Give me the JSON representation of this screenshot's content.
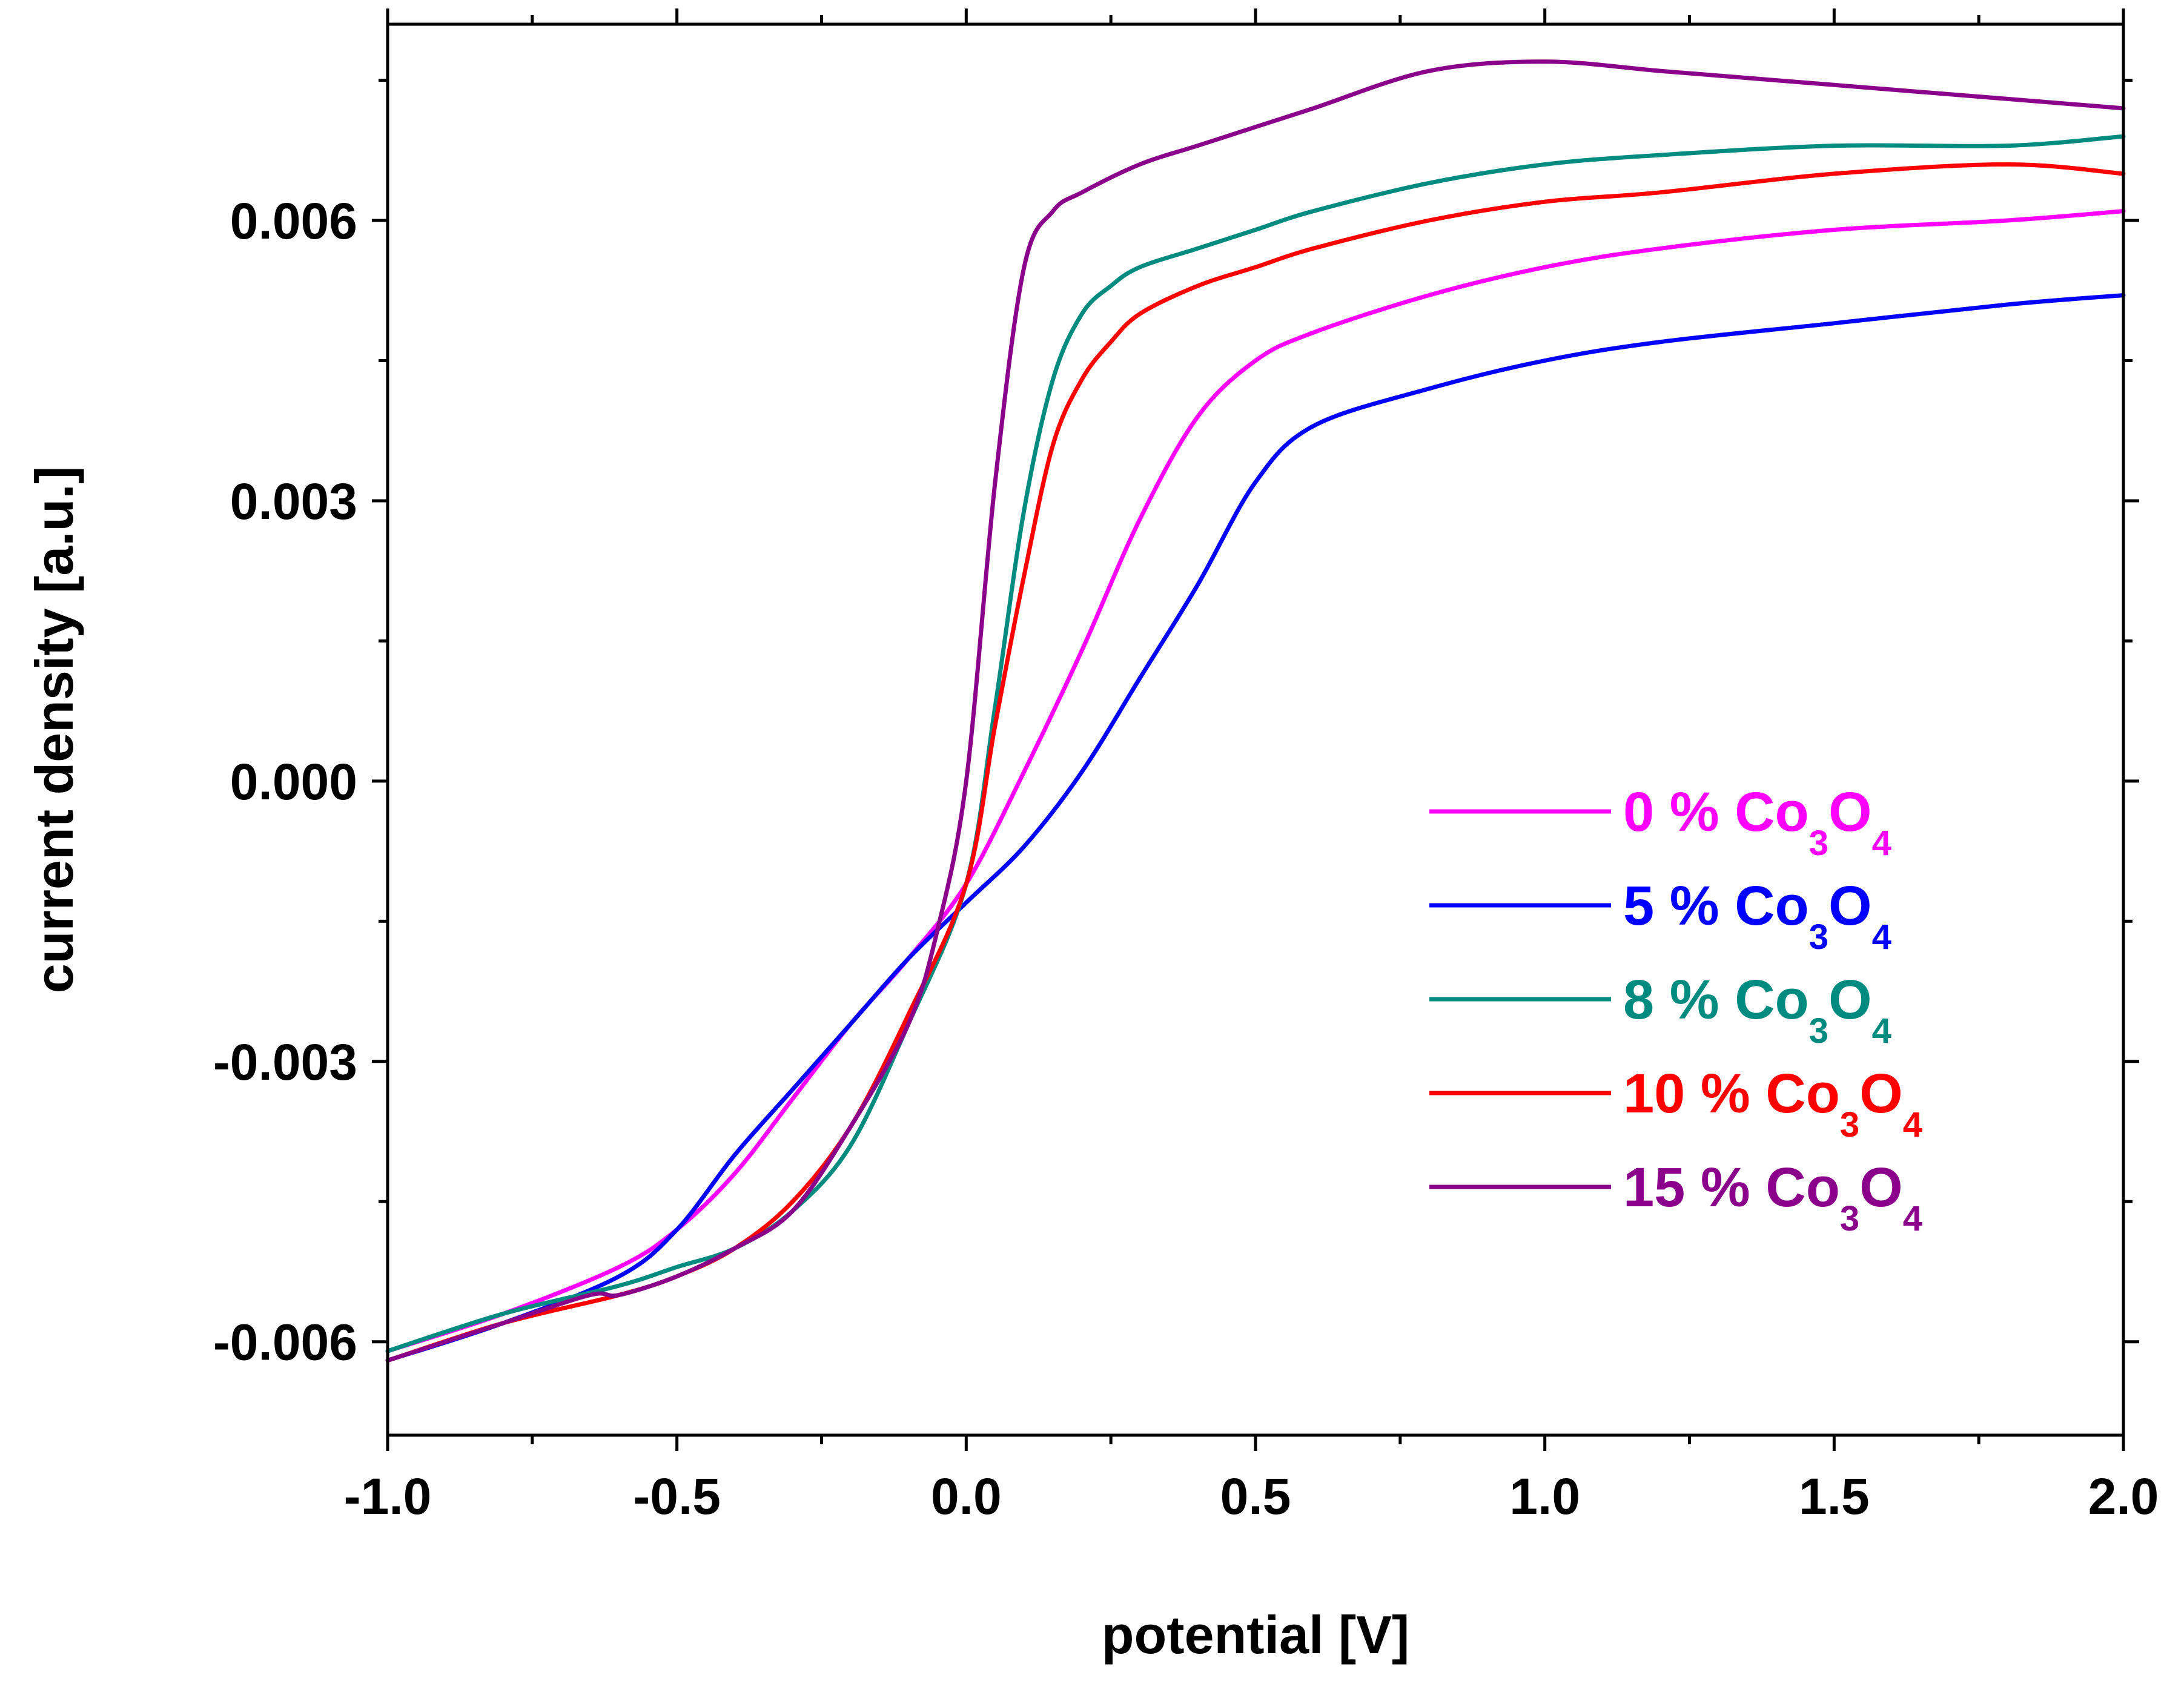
{
  "chart_data": {
    "type": "line",
    "title": "",
    "xlabel": "potential [V]",
    "ylabel": "current density [a.u.]",
    "xlim": [
      -1.0,
      2.0
    ],
    "ylim": [
      -0.007,
      0.0081
    ],
    "xticks": [
      -1.0,
      -0.5,
      0.0,
      0.5,
      1.0,
      1.5,
      2.0
    ],
    "xtick_labels": [
      "-1.0",
      "-0.5",
      "0.0",
      "0.5",
      "1.0",
      "1.5",
      "2.0"
    ],
    "yticks": [
      -0.006,
      -0.003,
      0.0,
      0.003,
      0.006
    ],
    "ytick_labels": [
      "-0.006",
      "-0.003",
      "0.000",
      "0.003",
      "0.006"
    ],
    "grid": false,
    "legend_position": "center-right",
    "series": [
      {
        "name": "0 % Co3O4",
        "legend": {
          "pct": "0 %",
          "co": "Co",
          "s1": "3",
          "o": "O",
          "s2": "4"
        },
        "color": "#ff00ff",
        "x": [
          -1.0,
          -0.8,
          -0.6,
          -0.5,
          -0.4,
          -0.3,
          -0.2,
          -0.1,
          0.0,
          0.1,
          0.2,
          0.3,
          0.4,
          0.5,
          0.6,
          0.8,
          1.0,
          1.2,
          1.5,
          1.8,
          2.0
        ],
        "y": [
          -0.0061,
          -0.0057,
          -0.0052,
          -0.0048,
          -0.0042,
          -0.0034,
          -0.0026,
          -0.0019,
          -0.0011,
          0.0001,
          0.0014,
          0.0028,
          0.0039,
          0.0045,
          0.0048,
          0.0052,
          0.0055,
          0.0057,
          0.0059,
          0.006,
          0.0061
        ]
      },
      {
        "name": "5 % Co3O4",
        "legend": {
          "pct": "5 %",
          "co": "Co",
          "s1": "3",
          "o": "O",
          "s2": "4"
        },
        "color": "#0000ff",
        "x": [
          -1.0,
          -0.8,
          -0.6,
          -0.5,
          -0.4,
          -0.3,
          -0.2,
          -0.1,
          0.0,
          0.1,
          0.2,
          0.3,
          0.4,
          0.5,
          0.6,
          0.8,
          1.0,
          1.2,
          1.5,
          1.8,
          2.0
        ],
        "y": [
          -0.0062,
          -0.0058,
          -0.0053,
          -0.0048,
          -0.004,
          -0.0033,
          -0.0026,
          -0.0019,
          -0.0013,
          -0.0007,
          0.0001,
          0.0011,
          0.0021,
          0.0032,
          0.0038,
          0.0042,
          0.0045,
          0.0047,
          0.0049,
          0.0051,
          0.0052
        ]
      },
      {
        "name": "8 % Co3O4",
        "legend": {
          "pct": "8 %",
          "co": "Co",
          "s1": "3",
          "o": "O",
          "s2": "4"
        },
        "color": "#008b80",
        "x": [
          -1.0,
          -0.8,
          -0.6,
          -0.5,
          -0.4,
          -0.3,
          -0.2,
          -0.1,
          0.0,
          0.05,
          0.1,
          0.15,
          0.2,
          0.25,
          0.3,
          0.4,
          0.5,
          0.6,
          0.8,
          1.0,
          1.2,
          1.5,
          1.8,
          2.0
        ],
        "y": [
          -0.0061,
          -0.0057,
          -0.0054,
          -0.0052,
          -0.005,
          -0.0046,
          -0.0039,
          -0.0026,
          -0.0011,
          0.0008,
          0.0029,
          0.0043,
          0.005,
          0.0053,
          0.0055,
          0.0057,
          0.0059,
          0.0061,
          0.0064,
          0.0066,
          0.0067,
          0.0068,
          0.0068,
          0.0069
        ]
      },
      {
        "name": "10 % Co3O4",
        "legend": {
          "pct": "10 %",
          "co": "Co",
          "s1": "3",
          "o": "O",
          "s2": "4"
        },
        "color": "#ff0000",
        "x": [
          -1.0,
          -0.8,
          -0.6,
          -0.5,
          -0.4,
          -0.3,
          -0.2,
          -0.1,
          0.0,
          0.05,
          0.1,
          0.15,
          0.2,
          0.25,
          0.3,
          0.4,
          0.5,
          0.6,
          0.8,
          1.0,
          1.2,
          1.5,
          1.8,
          2.0
        ],
        "y": [
          -0.0062,
          -0.0058,
          -0.0055,
          -0.0053,
          -0.005,
          -0.0045,
          -0.0037,
          -0.0025,
          -0.0011,
          0.0006,
          0.0022,
          0.0036,
          0.0043,
          0.0047,
          0.005,
          0.0053,
          0.0055,
          0.0057,
          0.006,
          0.0062,
          0.0063,
          0.0065,
          0.0066,
          0.0065
        ]
      },
      {
        "name": "15 % Co3O4",
        "legend": {
          "pct": "15 %",
          "co": "Co",
          "s1": "3",
          "o": "O",
          "s2": "4"
        },
        "color": "#8b008b",
        "x": [
          -1.0,
          -0.8,
          -0.65,
          -0.6,
          -0.5,
          -0.4,
          -0.3,
          -0.2,
          -0.1,
          -0.05,
          0.0,
          0.05,
          0.1,
          0.15,
          0.2,
          0.3,
          0.4,
          0.5,
          0.6,
          0.8,
          1.0,
          1.2,
          1.4,
          1.6,
          1.8,
          2.0
        ],
        "y": [
          -0.0062,
          -0.0058,
          -0.0055,
          -0.0055,
          -0.0053,
          -0.005,
          -0.0046,
          -0.0037,
          -0.0026,
          -0.0016,
          0.0,
          0.0032,
          0.0055,
          0.0061,
          0.0063,
          0.0066,
          0.0068,
          0.007,
          0.0072,
          0.0076,
          0.0077,
          0.0076,
          0.0075,
          0.0074,
          0.0073,
          0.0072
        ]
      }
    ]
  }
}
